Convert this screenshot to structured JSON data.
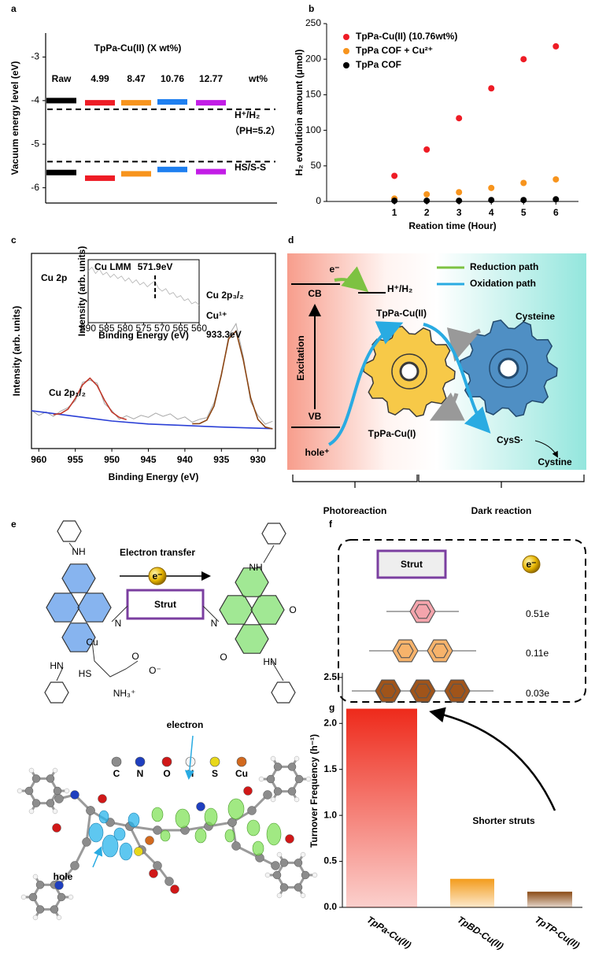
{
  "panel_labels": [
    "a",
    "b",
    "c",
    "d",
    "e",
    "f",
    "g"
  ],
  "chart_data": [
    {
      "type": "level",
      "title": "TpPa-Cu(II) (X wt%)",
      "unit_label": "wt%",
      "ylabel": "Vacuum energy level (eV)",
      "categories": [
        "Raw",
        "4.99",
        "8.47",
        "10.76",
        "12.77"
      ],
      "colors": [
        "#000000",
        "#ee1c25",
        "#f7941d",
        "#1e7ff0",
        "#c21de6"
      ],
      "series": [
        {
          "values": [
            -4.0,
            -4.05,
            -4.05,
            -4.03,
            -4.05
          ]
        },
        {
          "values": [
            -5.65,
            -5.78,
            -5.68,
            -5.58,
            -5.63
          ]
        }
      ],
      "reference_lines": [
        {
          "label": "H⁺/H₂",
          "note": "（PH=5.2）",
          "value": -4.2
        },
        {
          "label": "HS/S-S",
          "value": -5.4
        }
      ],
      "ylim": [
        -6.35,
        -2.45
      ],
      "yticks": [
        -6,
        -5,
        -4,
        -3
      ]
    },
    {
      "type": "scatter",
      "xlabel": "Reation time (Hour)",
      "ylabel": "H₂ evolutioin amount (μmol)",
      "x": [
        1,
        2,
        3,
        4,
        5,
        6
      ],
      "series": [
        {
          "name": "TpPa-Cu(II) (10.76wt%)",
          "color": "#ee1c25",
          "values": [
            36,
            73,
            117,
            159,
            200,
            218
          ]
        },
        {
          "name": "TpPa COF + Cu²⁺",
          "color": "#f7941d",
          "values": [
            4,
            10,
            13,
            19,
            26,
            31
          ]
        },
        {
          "name": "TpPa COF",
          "color": "#000000",
          "values": [
            1,
            1,
            1,
            2,
            2,
            3
          ]
        }
      ],
      "xlim": [
        -1.1,
        6.7
      ],
      "xticks": [
        1,
        2,
        3,
        4,
        5,
        6
      ],
      "ylim": [
        0,
        250
      ],
      "yticks": [
        0,
        50,
        100,
        150,
        200,
        250
      ],
      "legend": "upper left"
    },
    {
      "type": "line",
      "xlabel": "Binding Energy (eV)",
      "ylabel": "Intensity (arb. units)",
      "annotations": [
        "Cu 2p",
        "Cu 2p₁/₂",
        "Cu 2p₃/₂",
        "Cu¹⁺",
        "933.3eV"
      ],
      "xlim": [
        961,
        927.6
      ],
      "xticks": [
        960,
        955,
        950,
        945,
        940,
        935,
        930
      ],
      "ylim": [
        0,
        100
      ],
      "series": [
        {
          "color": "#a8a8a8",
          "x": [
            961,
            960,
            959,
            958,
            957,
            956,
            955,
            954,
            953,
            952,
            951,
            950,
            949,
            948,
            947,
            946,
            945,
            944,
            943,
            942,
            941,
            940,
            939,
            938,
            937,
            936,
            935,
            934,
            933,
            932,
            931,
            930,
            929,
            928
          ],
          "values": [
            19.5,
            17.0,
            18.8,
            16.5,
            19.2,
            21.0,
            24.5,
            34.0,
            35.0,
            33.5,
            23.0,
            19.5,
            15.0,
            16.8,
            15.2,
            17.0,
            16.0,
            18.2,
            16.5,
            17.8,
            15.0,
            16.2,
            13.5,
            15.0,
            15.8,
            23.5,
            37.0,
            58.0,
            64.0,
            47.0,
            24.0,
            17.0,
            12.5,
            14.0
          ]
        },
        {
          "color": "#2a3fd6",
          "x": [
            961,
            955,
            950,
            945,
            940,
            935,
            928
          ],
          "values": [
            19.4,
            16.5,
            14.1,
            12.6,
            11.8,
            11.0,
            10.2
          ]
        },
        {
          "color": "#c0392b",
          "x": [
            958,
            957,
            956,
            955,
            954,
            953,
            952,
            951,
            950,
            949,
            948
          ],
          "values": [
            17.4,
            17.9,
            20.2,
            25.7,
            32.7,
            36.1,
            32.2,
            24.8,
            18.7,
            16.0,
            14.8
          ]
        },
        {
          "color": "#8b4513",
          "x": [
            939,
            938,
            937,
            936,
            935,
            934,
            933,
            932,
            931,
            930,
            929,
            928
          ],
          "values": [
            12.7,
            12.8,
            14.6,
            21.8,
            38.0,
            56.3,
            60.2,
            45.3,
            26.1,
            14.9,
            11.0,
            10.1
          ]
        }
      ],
      "inset": {
        "title": "Cu LMM",
        "marker": 571.9,
        "marker_label": "571.9eV",
        "xlabel": "Binding Energy (eV)",
        "ylabel": "Intensity (arb. units)",
        "xlim": [
          590,
          560
        ],
        "xticks": [
          590,
          585,
          580,
          575,
          570,
          565,
          560
        ],
        "ylim": [
          0,
          100
        ],
        "series": [
          {
            "color": "#b0b0b0",
            "x": [
              590,
              589,
              588,
              587,
              586,
              585,
              584,
              583,
              582,
              581,
              580,
              579,
              578,
              577,
              576,
              575,
              574,
              573,
              572,
              571,
              570,
              569,
              568,
              567,
              566,
              565,
              564,
              563,
              562,
              561,
              560
            ],
            "values": [
              82,
              88,
              78,
              85,
              76,
              80,
              72,
              77,
              70,
              74,
              66,
              71,
              63,
              68,
              60,
              64,
              57,
              62,
              66,
              55,
              50,
              54,
              45,
              48,
              40,
              43,
              35,
              38,
              30,
              33,
              28
            ]
          }
        ]
      }
    },
    {
      "type": "bar",
      "ylabel": "Turnover Frequency (h⁻¹)",
      "annotation": "Shorter struts",
      "categories": [
        "TpPa-Cu(II)",
        "TpBD-Cu(II)",
        "TpTP-Cu(II)"
      ],
      "values": [
        2.16,
        0.31,
        0.17
      ],
      "colors": [
        "#ee2a1b",
        "#f39c1c",
        "#8a4a14"
      ],
      "ylim": [
        0,
        2.55
      ],
      "yticks": [
        {
          "value": 0,
          "label": "0.0"
        },
        {
          "value": 0.5,
          "label": "0.5"
        },
        {
          "value": 1,
          "label": "1.0"
        },
        {
          "value": 1.5,
          "label": "1.5"
        },
        {
          "value": 2,
          "label": "2.0"
        },
        {
          "value": 2.5,
          "label": "2.5"
        }
      ]
    }
  ],
  "diagram_d": {
    "cb": "CB",
    "vb": "VB",
    "electron": "e⁻",
    "redox_couple": "H⁺/H₂",
    "legend": [
      {
        "label": "Reduction path",
        "color": "#7dc242"
      },
      {
        "label": "Oxidation path",
        "color": "#29abe2"
      }
    ],
    "excitation": "Excitation",
    "gear_left": {
      "top": "TpPa-Cu(II)",
      "bottom": "TpPa-Cu(I)"
    },
    "gear_right": {
      "top": "Cysteine",
      "product": "CysS·",
      "final": "Cystine"
    },
    "hole": "hole⁺",
    "sections": [
      "Photoreaction",
      "Dark reaction"
    ]
  },
  "diagram_e": {
    "title": "Electron transfer",
    "electron": "e⁻",
    "strut": "Strut",
    "molecule_labels": [
      "NH",
      "HN",
      "N",
      "Cu",
      "HS",
      "O",
      "O⁻",
      "NH₃⁺",
      "N",
      "NH",
      "HN",
      "O",
      "O"
    ],
    "atoms": [
      {
        "symbol": "C",
        "color": "#8c8c8c"
      },
      {
        "symbol": "N",
        "color": "#1f3fbf"
      },
      {
        "symbol": "O",
        "color": "#d01818"
      },
      {
        "symbol": "H",
        "color": "#f4f4f4"
      },
      {
        "symbol": "S",
        "color": "#e8d81a"
      },
      {
        "symbol": "Cu",
        "color": "#d2691e"
      }
    ],
    "electron_label": "electron",
    "hole_label": "hole"
  },
  "diagram_f": {
    "strut": "Strut",
    "electron": "e⁻",
    "rows": [
      {
        "color": "#f4a4ac",
        "charge": "0.51e"
      },
      {
        "color": "#f7b36b",
        "charge": "0.11e"
      },
      {
        "color": "#a0541a",
        "charge": "0.03e"
      }
    ]
  }
}
